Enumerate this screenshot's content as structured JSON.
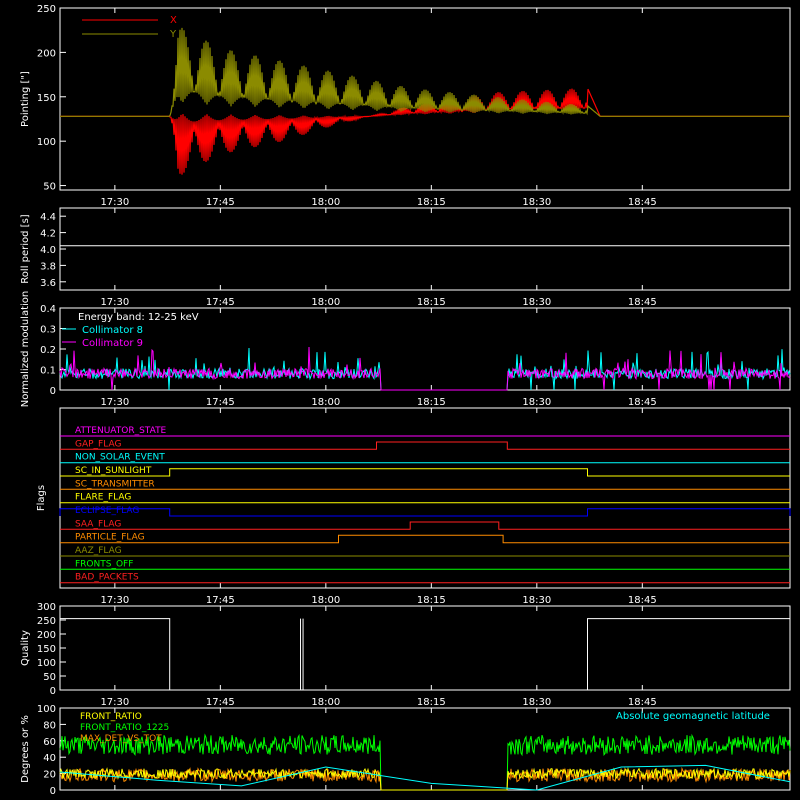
{
  "time_ticks": [
    "17:30",
    "17:45",
    "18:00",
    "18:15",
    "18:30",
    "18:45"
  ],
  "colors": {
    "axis": "#ffffff",
    "x_series": "#ff0000",
    "y_series": "#8b8b00",
    "c8": "#00ffff",
    "c9": "#ff00ff",
    "ratio": "#ffff00",
    "ratio1225": "#00ff00",
    "maxdet": "#ff8c00",
    "maglat": "#00ffff"
  },
  "chart_data": [
    {
      "type": "line",
      "id": "pointing",
      "ylabel": "Pointing [\"]",
      "ylim": [
        45,
        250
      ],
      "y_ticks": [
        "50",
        "100",
        "150",
        "200",
        "250"
      ],
      "legend": [
        "X",
        "Y"
      ],
      "series": [
        {
          "name": "X",
          "description_points": [
            [
              17.37,
              128
            ],
            [
              17.63,
              128
            ],
            [
              17.65,
              60
            ],
            [
              17.75,
              85
            ],
            [
              17.9,
              100
            ],
            [
              18.0,
              115
            ],
            [
              18.2,
              140
            ],
            [
              18.4,
              155
            ],
            [
              18.62,
              160
            ],
            [
              18.65,
              128
            ],
            [
              19.1,
              128
            ]
          ]
        },
        {
          "name": "Y",
          "description_points": [
            [
              17.37,
              128
            ],
            [
              17.63,
              128
            ],
            [
              17.65,
              230
            ],
            [
              17.75,
              205
            ],
            [
              17.9,
              190
            ],
            [
              18.0,
              180
            ],
            [
              18.2,
              160
            ],
            [
              18.4,
              150
            ],
            [
              18.62,
              140
            ],
            [
              18.65,
              128
            ],
            [
              19.1,
              128
            ]
          ]
        }
      ]
    },
    {
      "type": "line",
      "id": "roll_period",
      "ylabel": "Roll period [s]",
      "ylim": [
        3.5,
        4.5
      ],
      "y_ticks": [
        "3.6",
        "3.8",
        "4.0",
        "4.2",
        "4.4"
      ],
      "series": [
        {
          "name": "",
          "values": [
            [
              17.37,
              4.04
            ],
            [
              19.1,
              4.04
            ]
          ]
        }
      ]
    },
    {
      "type": "line",
      "id": "modulation",
      "ylabel": "Normalized modulation",
      "ylim": [
        0,
        0.4
      ],
      "y_ticks": [
        "0",
        "0.1",
        "0.2",
        "0.3",
        "0.4"
      ],
      "legend_title": "Energy band: 12-25 keV",
      "series": [
        {
          "name": "Collimator 8",
          "level": 0.08,
          "gaps": [
            [
              18.13,
              18.43
            ]
          ]
        },
        {
          "name": "Collimator 9",
          "level": 0.08,
          "gaps": [
            [
              18.13,
              18.43
            ]
          ]
        }
      ]
    },
    {
      "type": "line",
      "id": "flags",
      "ylabel": "Flags",
      "flags": [
        {
          "name": "ATTENUATOR_STATE",
          "color": "#ff00ff",
          "on": []
        },
        {
          "name": "GAP_FLAG",
          "color": "#ff2020",
          "on": [
            [
              18.12,
              18.43
            ]
          ]
        },
        {
          "name": "NON_SOLAR_EVENT",
          "color": "#00ffff",
          "on": []
        },
        {
          "name": "SC_IN_SUNLIGHT",
          "color": "#ffff00",
          "on": [
            [
              17.63,
              18.62
            ]
          ]
        },
        {
          "name": "SC_TRANSMITTER",
          "color": "#ff8c00",
          "on": []
        },
        {
          "name": "FLARE_FLAG",
          "color": "#ffff00",
          "on": []
        },
        {
          "name": "ECLIPSE_FLAG",
          "color": "#0000ff",
          "on": [
            [
              17.37,
              17.63
            ],
            [
              18.62,
              19.1
            ]
          ]
        },
        {
          "name": "SAA_FLAG",
          "color": "#ff2020",
          "on": [
            [
              18.2,
              18.41
            ]
          ]
        },
        {
          "name": "PARTICLE_FLAG",
          "color": "#ff8c00",
          "on": [
            [
              18.03,
              18.42
            ]
          ]
        },
        {
          "name": "AAZ_FLAG",
          "color": "#8b8b00",
          "on": []
        },
        {
          "name": "FRONTS_OFF",
          "color": "#00ff00",
          "on": []
        },
        {
          "name": "BAD_PACKETS",
          "color": "#ff2020",
          "on": []
        }
      ]
    },
    {
      "type": "line",
      "id": "quality",
      "ylabel": "Quality",
      "ylim": [
        0,
        300
      ],
      "y_ticks": [
        "0",
        "50",
        "100",
        "150",
        "200",
        "250",
        "300"
      ],
      "series": [
        {
          "name": "",
          "values": [
            [
              17.37,
              255
            ],
            [
              17.63,
              255
            ],
            [
              17.63,
              0
            ],
            [
              18.62,
              0
            ],
            [
              18.62,
              255
            ],
            [
              19.1,
              255
            ]
          ]
        }
      ]
    },
    {
      "type": "line",
      "id": "ratios",
      "ylabel": "Degrees or %",
      "ylim": [
        0,
        100
      ],
      "y_ticks": [
        "0",
        "20",
        "40",
        "60",
        "80",
        "100"
      ],
      "annotation": "Absolute geomagnetic latitude",
      "series": [
        {
          "name": "FRONT_RATIO",
          "level": 20
        },
        {
          "name": "FRONT_RATIO_1225",
          "level": 55
        },
        {
          "name": "MAX_DET_VS_TOT",
          "level": 18
        },
        {
          "name": "Absolute geomagnetic latitude",
          "values": [
            [
              17.37,
              22
            ],
            [
              17.6,
              12
            ],
            [
              17.8,
              5
            ],
            [
              18.0,
              28
            ],
            [
              18.25,
              8
            ],
            [
              18.5,
              0
            ],
            [
              18.7,
              28
            ],
            [
              18.9,
              30
            ],
            [
              19.1,
              10
            ]
          ]
        }
      ]
    }
  ]
}
